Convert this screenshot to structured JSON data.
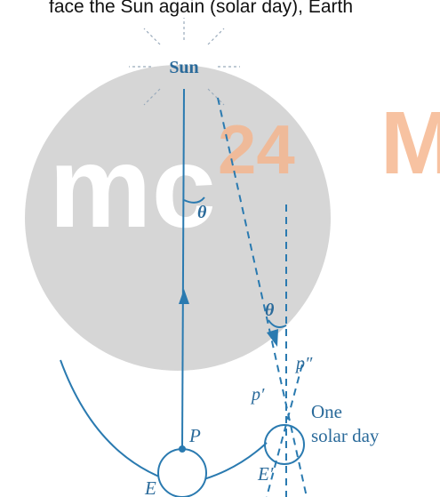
{
  "caption": "face the Sun again (solar day), Earth",
  "labels": {
    "sun": "Sun",
    "theta_top": "θ",
    "theta_bottom": "θ",
    "p_double": "p″",
    "p_prime": "p′",
    "one": "One",
    "solar_day": "solar day",
    "P": "P",
    "E": "E",
    "E_prime": "E′"
  },
  "watermark": {
    "left": "mc",
    "number": "24",
    "right": "M"
  }
}
